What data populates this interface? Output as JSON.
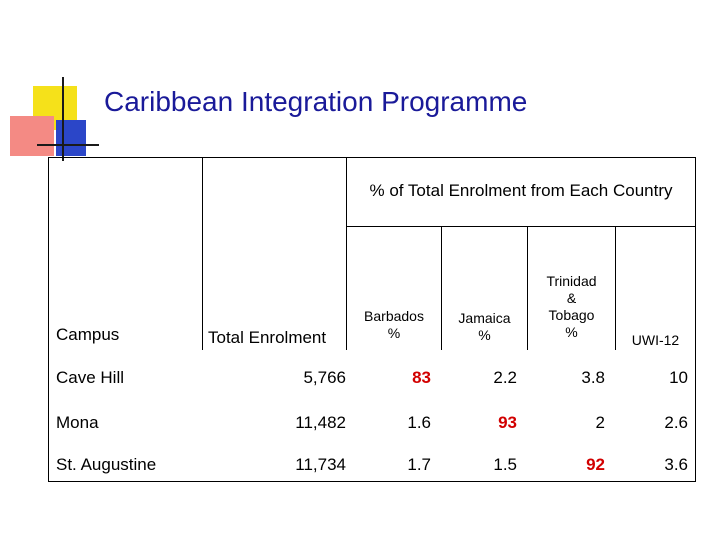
{
  "slide": {
    "title": "Caribbean Integration Programme"
  },
  "table": {
    "group_header": "% of Total Enrolment from Each Country",
    "columns": {
      "campus": "Campus",
      "total": "Total Enrolment",
      "barbados": [
        "Barbados",
        "%"
      ],
      "jamaica": [
        "Jamaica",
        "%"
      ],
      "trinidad": [
        "Trinidad",
        "&",
        "Tobago",
        "%"
      ],
      "uwi": "UWI-12"
    },
    "rows": [
      {
        "campus": "Cave Hill",
        "total": "5,766",
        "barbados": "83",
        "jamaica": "2.2",
        "trinidad": "3.8",
        "uwi": "10"
      },
      {
        "campus": "Mona",
        "total": "11,482",
        "barbados": "1.6",
        "jamaica": "93",
        "trinidad": "2",
        "uwi": "2.6"
      },
      {
        "campus": "St. Augustine",
        "total": "11,734",
        "barbados": "1.7",
        "jamaica": "1.5",
        "trinidad": "92",
        "uwi": "3.6"
      }
    ],
    "highlight_color": "#d20000"
  }
}
